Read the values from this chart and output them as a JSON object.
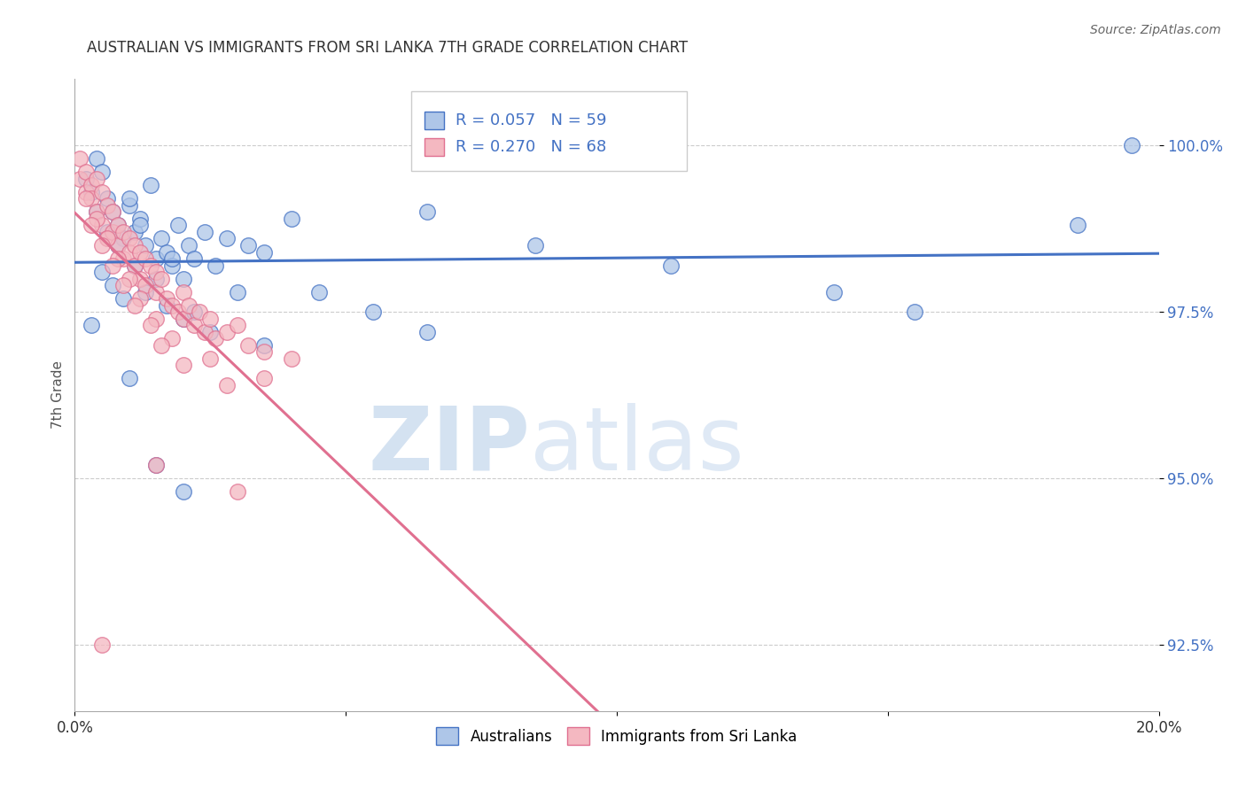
{
  "title": "AUSTRALIAN VS IMMIGRANTS FROM SRI LANKA 7TH GRADE CORRELATION CHART",
  "source": "Source: ZipAtlas.com",
  "ylabel": "7th Grade",
  "yticks": [
    92.5,
    95.0,
    97.5,
    100.0
  ],
  "ytick_labels": [
    "92.5%",
    "95.0%",
    "97.5%",
    "100.0%"
  ],
  "xmin": 0.0,
  "xmax": 20.0,
  "ymin": 91.5,
  "ymax": 101.0,
  "legend_r1": "R = 0.057",
  "legend_n1": "N = 59",
  "legend_r2": "R = 0.270",
  "legend_n2": "N = 68",
  "color_blue_fill": "#aec6e8",
  "color_blue_edge": "#4472c4",
  "color_pink_fill": "#f4b8c1",
  "color_pink_edge": "#e07090",
  "color_line_blue": "#4472c4",
  "color_line_pink": "#e07090",
  "label_australians": "Australians",
  "label_srilanka": "Immigrants from Sri Lanka",
  "au_x": [
    0.2,
    0.3,
    0.4,
    0.5,
    0.6,
    0.7,
    0.8,
    0.9,
    1.0,
    1.1,
    1.2,
    1.3,
    1.4,
    1.5,
    1.6,
    1.7,
    1.8,
    1.9,
    2.0,
    2.1,
    2.2,
    2.4,
    2.6,
    2.8,
    3.2,
    3.5,
    4.0,
    4.5,
    5.5,
    6.5,
    0.5,
    0.7,
    0.9,
    1.1,
    1.3,
    1.5,
    1.7,
    2.0,
    2.5,
    3.0,
    0.4,
    0.6,
    0.8,
    1.0,
    1.2,
    1.8,
    2.2,
    3.5,
    6.5,
    8.5,
    11.0,
    14.0,
    15.5,
    18.5,
    19.5,
    0.3,
    1.0,
    1.5,
    2.0
  ],
  "au_y": [
    99.5,
    99.3,
    99.8,
    99.6,
    99.2,
    99.0,
    98.8,
    98.6,
    99.1,
    98.7,
    98.9,
    98.5,
    99.4,
    98.3,
    98.6,
    98.4,
    98.2,
    98.8,
    98.0,
    98.5,
    98.3,
    98.7,
    98.2,
    98.6,
    98.5,
    98.4,
    98.9,
    97.8,
    97.5,
    97.2,
    98.1,
    97.9,
    97.7,
    98.2,
    97.8,
    98.0,
    97.6,
    97.4,
    97.2,
    97.8,
    99.0,
    98.7,
    98.5,
    99.2,
    98.8,
    98.3,
    97.5,
    97.0,
    99.0,
    98.5,
    98.2,
    97.8,
    97.5,
    98.8,
    100.0,
    97.3,
    96.5,
    95.2,
    94.8
  ],
  "sl_x": [
    0.1,
    0.1,
    0.2,
    0.2,
    0.3,
    0.3,
    0.4,
    0.4,
    0.5,
    0.5,
    0.6,
    0.6,
    0.7,
    0.7,
    0.8,
    0.8,
    0.9,
    0.9,
    1.0,
    1.0,
    1.1,
    1.1,
    1.2,
    1.2,
    1.3,
    1.3,
    1.4,
    1.5,
    1.5,
    1.6,
    1.7,
    1.8,
    1.9,
    2.0,
    2.0,
    2.1,
    2.2,
    2.3,
    2.4,
    2.5,
    2.6,
    2.8,
    3.0,
    3.2,
    3.5,
    4.0,
    0.2,
    0.4,
    0.6,
    0.8,
    1.0,
    1.2,
    1.5,
    1.8,
    2.5,
    3.5,
    0.3,
    0.5,
    0.7,
    0.9,
    1.1,
    1.4,
    1.6,
    2.0,
    2.8,
    1.5,
    3.0,
    0.5
  ],
  "sl_y": [
    99.8,
    99.5,
    99.6,
    99.3,
    99.4,
    99.2,
    99.5,
    99.0,
    99.3,
    98.8,
    99.1,
    98.6,
    99.0,
    98.7,
    98.8,
    98.5,
    98.7,
    98.3,
    98.6,
    98.4,
    98.5,
    98.2,
    98.4,
    98.0,
    98.3,
    97.9,
    98.2,
    98.1,
    97.8,
    98.0,
    97.7,
    97.6,
    97.5,
    97.8,
    97.4,
    97.6,
    97.3,
    97.5,
    97.2,
    97.4,
    97.1,
    97.2,
    97.3,
    97.0,
    96.9,
    96.8,
    99.2,
    98.9,
    98.6,
    98.3,
    98.0,
    97.7,
    97.4,
    97.1,
    96.8,
    96.5,
    98.8,
    98.5,
    98.2,
    97.9,
    97.6,
    97.3,
    97.0,
    96.7,
    96.4,
    95.2,
    94.8,
    92.5
  ]
}
